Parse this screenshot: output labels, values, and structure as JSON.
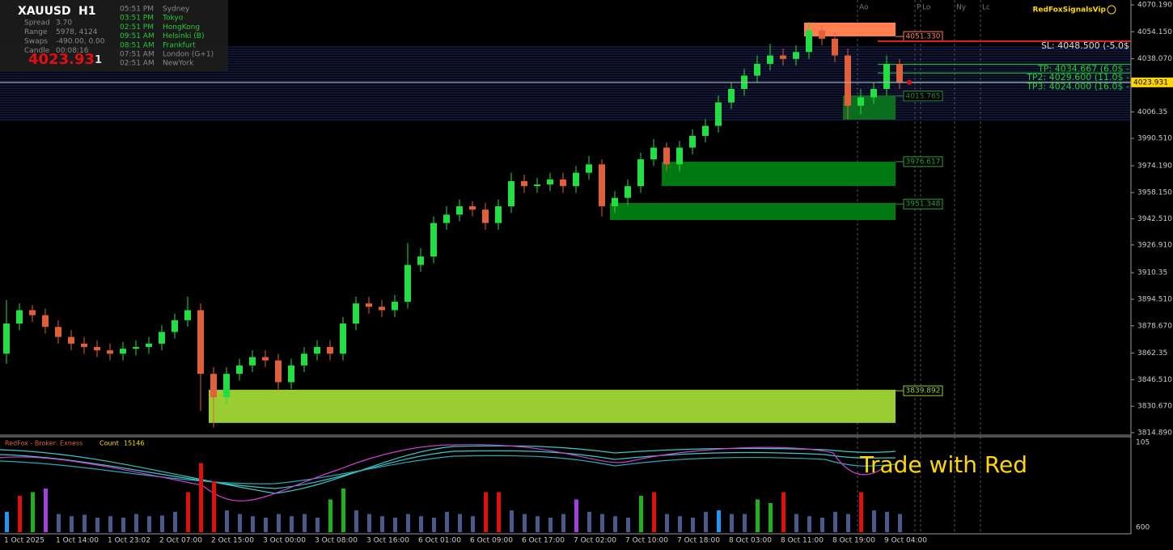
{
  "header": {
    "symbol": "XAUUSD",
    "timeframe": "H1",
    "rows": [
      {
        "label": "Spread",
        "value": "3.70"
      },
      {
        "label": "Range",
        "value": "5978, 4124"
      },
      {
        "label": "Swaps",
        "value": "-490.00, 0.00"
      },
      {
        "label": "Candle",
        "value": "00:08:16"
      }
    ],
    "price": "4023.93",
    "price_tail": "1",
    "sessions": [
      {
        "time": "05:51 PM",
        "name": "Sydney",
        "active": false
      },
      {
        "time": "03:51 PM",
        "name": "Tokyo",
        "active": true
      },
      {
        "time": "02:51 PM",
        "name": "HongKong",
        "active": true
      },
      {
        "time": "09:51 AM",
        "name": "Helsinki (B)",
        "active": true
      },
      {
        "time": "08:51 AM",
        "name": "Frankfurt",
        "active": true
      },
      {
        "time": "07:51 AM",
        "name": "London (G+1)",
        "active": false
      },
      {
        "time": "02:51 AM",
        "name": "NewYork",
        "active": false
      }
    ],
    "brand": "RedFoxSignalsVip",
    "session_markers": [
      "Ao",
      "P",
      "Lo",
      "Ny",
      "Lc"
    ]
  },
  "chart_data": [
    {
      "type": "candlestick",
      "up_color": "#22dd44",
      "down_color": "#e0603c",
      "categories": [
        "1 Oct 2025",
        null,
        null,
        null,
        "1 Oct 14:00",
        null,
        null,
        null,
        "1 Oct 23:02",
        null,
        null,
        null,
        "2 Oct 07:00",
        null,
        null,
        null,
        "2 Oct 15:00",
        null,
        null,
        null,
        "3 Oct 00:00",
        null,
        null,
        null,
        "3 Oct 08:00",
        null,
        null,
        null,
        "3 Oct 16:00",
        null,
        null,
        null,
        "6 Oct 01:00",
        null,
        null,
        null,
        "6 Oct 09:00",
        null,
        null,
        null,
        "6 Oct 17:00",
        null,
        null,
        null,
        "7 Oct 02:00",
        null,
        null,
        null,
        "7 Oct 10:00",
        null,
        null,
        null,
        "7 Oct 18:00",
        null,
        null,
        null,
        "8 Oct 03:00",
        null,
        null,
        null,
        "8 Oct 11:00",
        null,
        null,
        null,
        "8 Oct 19:00",
        null,
        null,
        null,
        "9 Oct 04:00",
        null
      ],
      "open": [
        3862,
        3880,
        3888,
        3885,
        3878,
        3872,
        3868,
        3866,
        3864,
        3862,
        3865,
        3866,
        3868,
        3875,
        3882,
        3888,
        3850,
        3836,
        3850,
        3855,
        3860,
        3858,
        3845,
        3855,
        3862,
        3866,
        3862,
        3880,
        3892,
        3890,
        3888,
        3893,
        3915,
        3920,
        3940,
        3945,
        3950,
        3948,
        3940,
        3950,
        3965,
        3962,
        3963,
        3966,
        3962,
        3970,
        3975,
        3950,
        3955,
        3962,
        3978,
        3985,
        3975,
        3985,
        3992,
        3998,
        4012,
        4020,
        4028,
        4035,
        4040,
        4038,
        4042,
        4055,
        4050,
        4040,
        4010,
        4015,
        4020,
        4035
      ],
      "high": [
        3894,
        3892,
        3891,
        3889,
        3882,
        3876,
        3872,
        3870,
        3868,
        3869,
        3870,
        3872,
        3879,
        3886,
        3896,
        3892,
        3854,
        3854,
        3859,
        3864,
        3864,
        3862,
        3859,
        3866,
        3870,
        3870,
        3884,
        3896,
        3896,
        3894,
        3897,
        3928,
        3925,
        3944,
        3950,
        3954,
        3953,
        3952,
        3954,
        3970,
        3969,
        3967,
        3970,
        3970,
        3974,
        3980,
        3978,
        3959,
        3966,
        3982,
        3990,
        3988,
        3989,
        3996,
        4002,
        4016,
        4024,
        4032,
        4040,
        4047,
        4044,
        4046,
        4060,
        4058,
        4054,
        4044,
        4020,
        4024,
        4040,
        4038
      ],
      "low": [
        3856,
        3876,
        3881,
        3874,
        3868,
        3864,
        3862,
        3860,
        3858,
        3858,
        3861,
        3862,
        3864,
        3871,
        3878,
        3828,
        3818,
        3832,
        3846,
        3851,
        3854,
        3840,
        3841,
        3851,
        3858,
        3858,
        3858,
        3876,
        3886,
        3884,
        3884,
        3889,
        3911,
        3916,
        3936,
        3941,
        3944,
        3936,
        3936,
        3946,
        3958,
        3958,
        3959,
        3958,
        3958,
        3966,
        3944,
        3946,
        3951,
        3958,
        3974,
        3971,
        3971,
        3981,
        3988,
        3994,
        4008,
        4016,
        4024,
        4031,
        4034,
        4034,
        4038,
        4046,
        4036,
        4002,
        4005,
        4011,
        4016,
        4020
      ],
      "close": [
        3880,
        3888,
        3885,
        3878,
        3872,
        3868,
        3866,
        3864,
        3862,
        3865,
        3866,
        3868,
        3875,
        3882,
        3888,
        3850,
        3836,
        3850,
        3855,
        3860,
        3858,
        3845,
        3855,
        3862,
        3866,
        3862,
        3880,
        3892,
        3890,
        3888,
        3893,
        3915,
        3920,
        3940,
        3945,
        3950,
        3948,
        3940,
        3950,
        3965,
        3962,
        3963,
        3966,
        3962,
        3970,
        3975,
        3950,
        3955,
        3962,
        3978,
        3985,
        3975,
        3985,
        3992,
        3998,
        4012,
        4020,
        4028,
        4035,
        4040,
        4038,
        4042,
        4055,
        4050,
        4040,
        4010,
        4015,
        4020,
        4035,
        4023.931
      ],
      "ylim": [
        3813.4,
        4073.1
      ],
      "yticks": [
        {
          "value": 4070.19,
          "label": "4070.190"
        },
        {
          "value": 4054.15,
          "label": "4054.150"
        },
        {
          "value": 4038.07,
          "label": "4038.070"
        },
        4006.35,
        {
          "value": 3990.51,
          "label": "3990.510"
        },
        {
          "value": 3974.19,
          "label": "3974.190"
        },
        {
          "value": 3958.15,
          "label": "3958.150"
        },
        {
          "value": 3942.51,
          "label": "3942.510"
        },
        {
          "value": 3926.91,
          "label": "3926.910"
        },
        3910.35,
        {
          "value": 3894.51,
          "label": "3894.510"
        },
        {
          "value": 3878.67,
          "label": "3878.670"
        },
        3862.35,
        {
          "value": 3846.51,
          "label": "3846.510"
        },
        {
          "value": 3830.67,
          "label": "3830.670"
        },
        {
          "value": 3814.89,
          "label": "3814.890"
        }
      ],
      "current_price": 4023.931,
      "zones": [
        {
          "start": 62,
          "top": 4059.6,
          "bottom": 4051.4,
          "color": "#ff7f50",
          "level": {
            "value": 4051.33,
            "label": "4051.330"
          },
          "label_color": "#ff7f50"
        },
        {
          "start": 65,
          "top": 4016.1,
          "bottom": 4001.7,
          "color": "#0b6e1e",
          "level": 4015.765,
          "label_color": "#2a8a3a"
        },
        {
          "start": 51,
          "top": 3976.6,
          "bottom": 3962.1,
          "color": "#007a10",
          "level": 3976.617,
          "label_color": "#2aa03a"
        },
        {
          "start": 47,
          "top": 3951.96,
          "bottom": 3941.8,
          "color": "#007a10",
          "level": 3951.348,
          "label_color": "#2aa03a"
        },
        {
          "start": 16,
          "top": 3840.5,
          "bottom": 3820.7,
          "color": "#9acd32",
          "level": 3839.892,
          "label_color": "#9acd32"
        }
      ],
      "levels": [
        {
          "value": 4048.5,
          "label": "SL: 4048.500 (-5.0$",
          "color": "#e02020"
        },
        {
          "value": 4034.667,
          "label": "TP: 4034.667 (6.0$ -",
          "color": "#22cc33"
        },
        {
          "value": 4029.6,
          "label": "TP2: 4029.600 (11.0$ -",
          "color": "#22cc33"
        },
        {
          "value": 4024.0,
          "label": "TP3: 4024.000 (16.0$ -",
          "color": "#22cc33"
        }
      ]
    },
    {
      "type": "bar",
      "title": "RedFox - Broker: Exness",
      "count_label": "Count",
      "count": 15146,
      "scale_labels": [
        "105",
        "600"
      ],
      "annotation": "Trade with Red",
      "ylim": [
        0,
        100
      ],
      "values": [
        28,
        50,
        55,
        60,
        25,
        22,
        24,
        20,
        22,
        20,
        25,
        22,
        23,
        28,
        55,
        95,
        70,
        30,
        25,
        22,
        20,
        25,
        22,
        25,
        20,
        45,
        60,
        30,
        25,
        22,
        20,
        25,
        22,
        20,
        28,
        25,
        22,
        55,
        55,
        30,
        25,
        22,
        20,
        25,
        45,
        28,
        25,
        22,
        20,
        50,
        55,
        25,
        22,
        20,
        28,
        30,
        25,
        25,
        45,
        40,
        55,
        25,
        22,
        20,
        28,
        25,
        55,
        30,
        28,
        25
      ],
      "colors": [
        "#2196f3",
        "#e01010",
        "#20b020",
        "#a040e0",
        "#4a5a8a",
        "#4a5a8a",
        "#4a5a8a",
        "#4a5a8a",
        "#4a5a8a",
        "#4a5a8a",
        "#4a5a8a",
        "#4a5a8a",
        "#4a5a8a",
        "#4a5a8a",
        "#e01010",
        "#e01010",
        "#e01010",
        "#4a5a8a",
        "#4a5a8a",
        "#4a5a8a",
        "#4a5a8a",
        "#4a5a8a",
        "#4a5a8a",
        "#4a5a8a",
        "#4a5a8a",
        "#20b020",
        "#20b020",
        "#4a5a8a",
        "#4a5a8a",
        "#4a5a8a",
        "#4a5a8a",
        "#4a5a8a",
        "#4a5a8a",
        "#4a5a8a",
        "#4a5a8a",
        "#4a5a8a",
        "#4a5a8a",
        "#e01010",
        "#e01010",
        "#4a5a8a",
        "#4a5a8a",
        "#4a5a8a",
        "#4a5a8a",
        "#4a5a8a",
        "#a040e0",
        "#4a5a8a",
        "#4a5a8a",
        "#4a5a8a",
        "#4a5a8a",
        "#20b020",
        "#e01010",
        "#4a5a8a",
        "#4a5a8a",
        "#4a5a8a",
        "#4a5a8a",
        "#2196f3",
        "#4a5a8a",
        "#4a5a8a",
        "#20b020",
        "#20b020",
        "#e01010",
        "#4a5a8a",
        "#4a5a8a",
        "#4a5a8a",
        "#4a5a8a",
        "#4a5a8a",
        "#e01010",
        "#4a5a8a",
        "#4a5a8a",
        "#4a5a8a"
      ]
    }
  ]
}
